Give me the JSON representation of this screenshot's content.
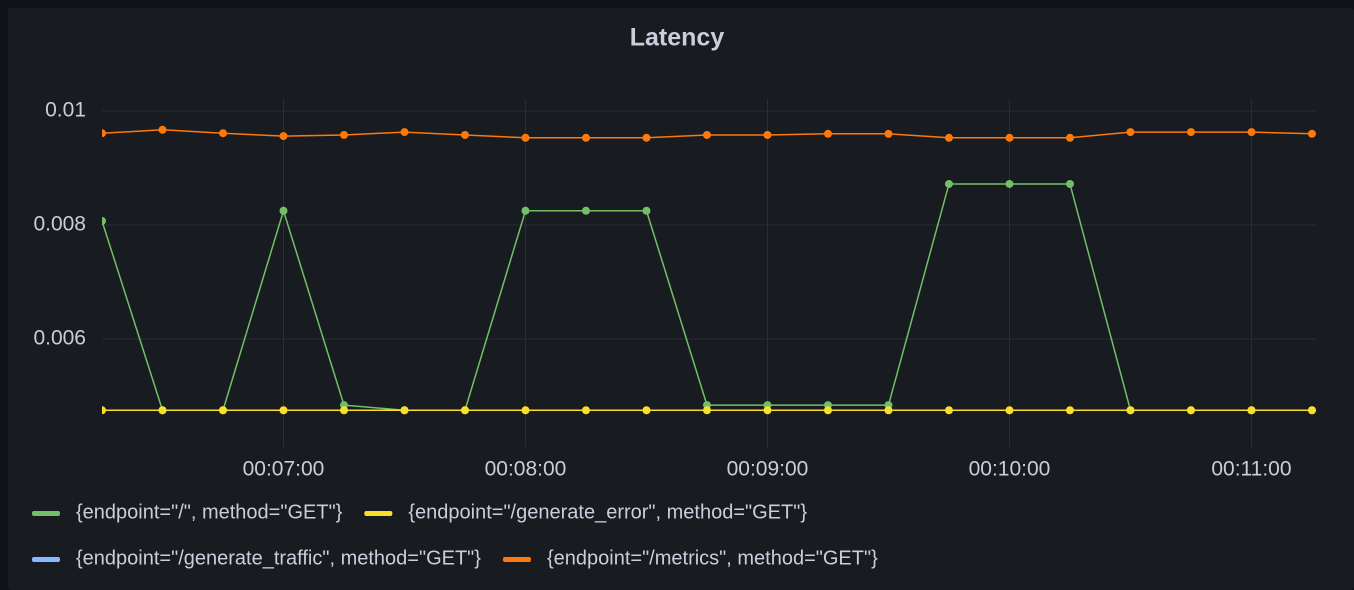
{
  "chart_data": {
    "type": "line",
    "title": "Latency",
    "x": [
      375,
      390,
      405,
      420,
      435,
      450,
      465,
      480,
      495,
      510,
      525,
      540,
      555,
      570,
      585,
      600,
      615,
      630,
      645,
      660,
      675
    ],
    "xlim": [
      375,
      676
    ],
    "xticks": [
      {
        "value": 420,
        "label": "00:07:00"
      },
      {
        "value": 480,
        "label": "00:08:00"
      },
      {
        "value": 540,
        "label": "00:09:00"
      },
      {
        "value": 600,
        "label": "00:10:00"
      },
      {
        "value": 660,
        "label": "00:11:00"
      }
    ],
    "ylim": [
      0.0041,
      0.0102
    ],
    "yticks": [
      0.006,
      0.008,
      0.01
    ],
    "grid": true,
    "legend": "bottom",
    "series": [
      {
        "name": "{endpoint=\"/\", method=\"GET\"}",
        "color": "#73bf69",
        "values": [
          0.00807,
          0.00475,
          0.00475,
          0.00825,
          0.00484,
          0.00475,
          0.00475,
          0.00825,
          0.00825,
          0.00825,
          0.00484,
          0.00484,
          0.00484,
          0.00484,
          0.00872,
          0.00872,
          0.00872,
          0.00475,
          0.00475,
          0.00475,
          0.00475
        ]
      },
      {
        "name": "{endpoint=\"/generate_error\", method=\"GET\"}",
        "color": "#fade2a",
        "values": [
          0.00475,
          0.00475,
          0.00475,
          0.00475,
          0.00475,
          0.00475,
          0.00475,
          0.00475,
          0.00475,
          0.00475,
          0.00475,
          0.00475,
          0.00475,
          0.00475,
          0.00475,
          0.00475,
          0.00475,
          0.00475,
          0.00475,
          0.00475,
          0.00475
        ]
      },
      {
        "name": "{endpoint=\"/generate_traffic\", method=\"GET\"}",
        "color": "#8ab8ff",
        "values": [
          null,
          null,
          null,
          null,
          null,
          null,
          null,
          null,
          null,
          null,
          null,
          null,
          null,
          null,
          null,
          null,
          null,
          null,
          null,
          null,
          null
        ]
      },
      {
        "name": "{endpoint=\"/metrics\", method=\"GET\"}",
        "color": "#ff780a",
        "values": [
          0.00961,
          0.00967,
          0.00961,
          0.00956,
          0.00958,
          0.00963,
          0.00958,
          0.00953,
          0.00953,
          0.00953,
          0.00958,
          0.00958,
          0.0096,
          0.0096,
          0.00953,
          0.00953,
          0.00953,
          0.00963,
          0.00963,
          0.00963,
          0.0096
        ]
      }
    ]
  }
}
